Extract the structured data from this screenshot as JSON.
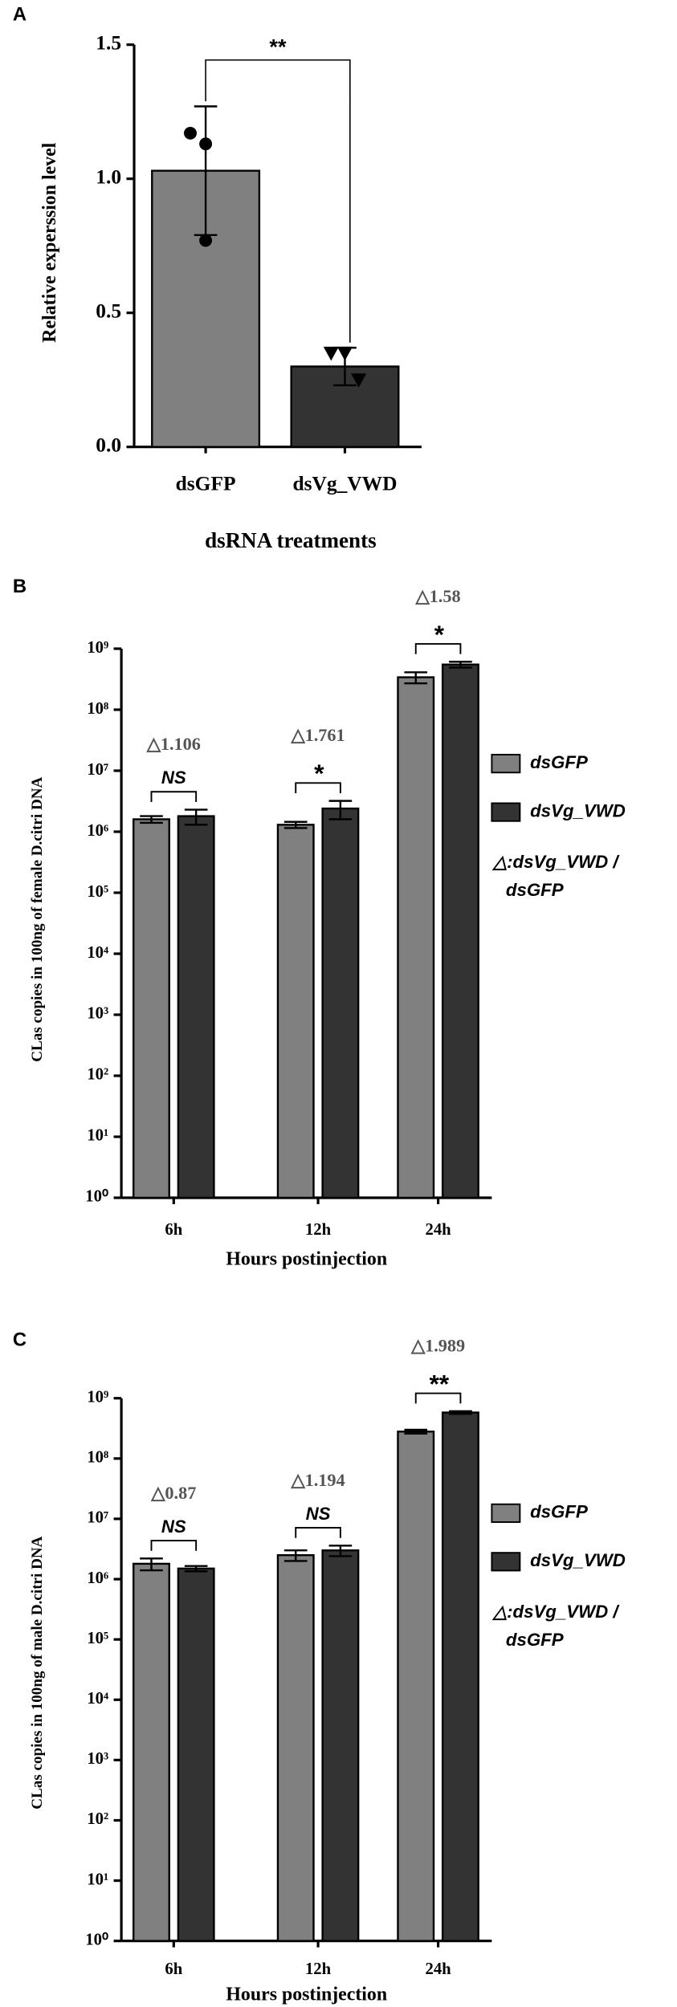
{
  "chart_data": [
    {
      "type": "bar",
      "panel_label": "A",
      "y_label": "Relative experssion level",
      "x_label": "dsRNA treatments",
      "log_scale": false,
      "ylim": [
        0,
        1.5
      ],
      "yticks": [
        {
          "value": 0,
          "label": "0.0"
        },
        0.5,
        {
          "value": 1,
          "label": "1.0"
        },
        1.5
      ],
      "categories": [
        "dsGFP",
        "dsVg_VWD"
      ],
      "series": [
        {
          "name": "dsGFP",
          "color": "#808080",
          "values": [
            1.03,
            null
          ],
          "errors": [
            0.24,
            null
          ],
          "marker": "circle",
          "points": [
            1.17,
            1.13,
            0.77
          ]
        },
        {
          "name": "dsVg_VWD",
          "color": "#333333",
          "values": [
            null,
            0.3
          ],
          "errors": [
            null,
            0.07
          ],
          "marker": "triangle",
          "points": [
            0.35,
            0.35,
            0.25
          ]
        }
      ],
      "significance": "**"
    },
    {
      "type": "bar",
      "panel_label": "B",
      "y_label": "CLas copies in 100ng of female D.citri DNA",
      "x_label": "Hours postinjection",
      "log_scale": true,
      "ylim": [
        1,
        1000000000
      ],
      "yticks": [
        {
          "value": 1,
          "label": "10⁰"
        },
        {
          "value": 10,
          "label": "10¹"
        },
        {
          "value": 100,
          "label": "10²"
        },
        {
          "value": 1000,
          "label": "10³"
        },
        {
          "value": 10000,
          "label": "10⁴"
        },
        {
          "value": 100000,
          "label": "10⁵"
        },
        {
          "value": 1000000,
          "label": "10⁶"
        },
        {
          "value": 10000000,
          "label": "10⁷"
        },
        {
          "value": 100000000,
          "label": "10⁸"
        },
        {
          "value": 1000000000,
          "label": "10⁹"
        }
      ],
      "categories": [
        "6h",
        "12h",
        "24h"
      ],
      "series": [
        {
          "name": "dsGFP",
          "color": "#808080",
          "values": [
            1600000,
            1300000,
            340000000
          ],
          "errors": [
            200000,
            150000,
            70000000
          ]
        },
        {
          "name": "dsVg_VWD",
          "color": "#333333",
          "values": [
            1800000,
            2400000,
            550000000
          ],
          "errors": [
            500000,
            800000,
            60000000
          ]
        }
      ],
      "ratio_labels": [
        "△1.106",
        "△1.761",
        "△1.58"
      ],
      "significance": [
        "NS",
        "*",
        "*"
      ],
      "legend_note": [
        "△:dsVg_VWD /",
        "dsGFP"
      ]
    },
    {
      "type": "bar",
      "panel_label": "C",
      "y_label": "CLas copies in 100ng of male D.citri DNA",
      "x_label": "Hours postinjection",
      "log_scale": true,
      "ylim": [
        1,
        1000000000
      ],
      "yticks": [
        {
          "value": 1,
          "label": "10⁰"
        },
        {
          "value": 10,
          "label": "10¹"
        },
        {
          "value": 100,
          "label": "10²"
        },
        {
          "value": 1000,
          "label": "10³"
        },
        {
          "value": 10000,
          "label": "10⁴"
        },
        {
          "value": 100000,
          "label": "10⁵"
        },
        {
          "value": 1000000,
          "label": "10⁶"
        },
        {
          "value": 10000000,
          "label": "10⁷"
        },
        {
          "value": 100000000,
          "label": "10⁸"
        },
        {
          "value": 1000000000,
          "label": "10⁹"
        }
      ],
      "categories": [
        "6h",
        "12h",
        "24h"
      ],
      "series": [
        {
          "name": "dsGFP",
          "color": "#808080",
          "values": [
            1800000,
            2500000,
            280000000
          ],
          "errors": [
            400000,
            500000,
            20000000
          ]
        },
        {
          "name": "dsVg_VWD",
          "color": "#333333",
          "values": [
            1500000,
            3000000,
            580000000
          ],
          "errors": [
            150000,
            600000,
            30000000
          ]
        }
      ],
      "ratio_labels": [
        "△0.87",
        "△1.194",
        "△1.989"
      ],
      "significance": [
        "NS",
        "NS",
        "**"
      ],
      "legend_note": [
        "△:dsVg_VWD /",
        "dsGFP"
      ]
    }
  ]
}
